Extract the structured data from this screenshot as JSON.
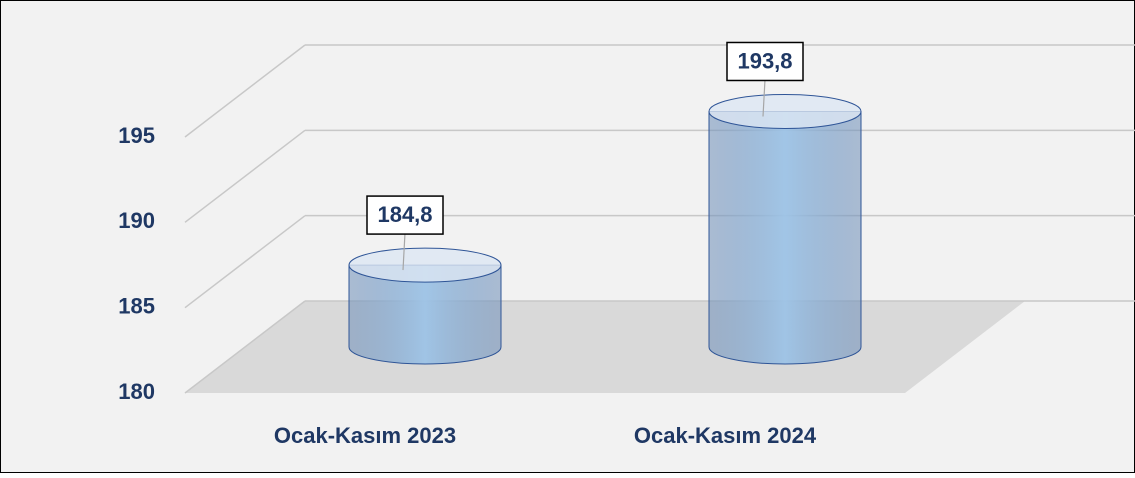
{
  "chart_data": {
    "type": "bar",
    "categories": [
      "Ocak-Kasım 2023",
      "Ocak-Kasım 2024"
    ],
    "values": [
      184.8,
      193.8
    ],
    "value_labels": [
      "184,8",
      "193,8"
    ],
    "color": "#9dc3e6",
    "ylim": [
      180,
      195
    ],
    "yticks": [
      180,
      185,
      190,
      195
    ],
    "grid": true
  }
}
